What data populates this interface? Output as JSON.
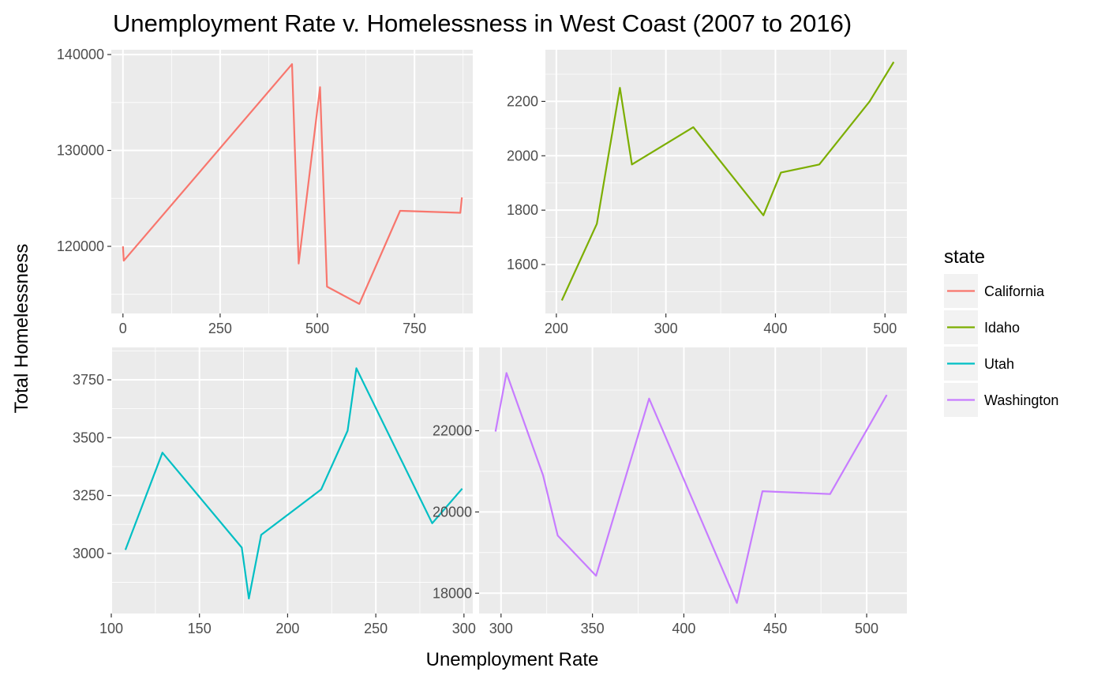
{
  "chart_data": {
    "type": "line",
    "title": "Unemployment Rate v. Homelessness in West Coast (2007 to 2016)",
    "xlabel": "Unemployment Rate",
    "ylabel": "Total Homelessness",
    "grid": true,
    "legend": {
      "title": "state",
      "placement": "right",
      "entries": [
        "California",
        "Idaho",
        "Utah",
        "Washington"
      ]
    },
    "panels": [
      {
        "name": "California",
        "color": "#F8766D",
        "xlim": [
          -30,
          900
        ],
        "ylim": [
          113000,
          140500
        ],
        "xticks": [
          0,
          250,
          500,
          750
        ],
        "xtick_labels": [
          "0",
          "250",
          "500",
          "750"
        ],
        "yticks": [
          120000,
          130000,
          140000
        ],
        "ytick_labels": [
          "120000",
          "130000",
          "140000"
        ],
        "x": [
          0,
          2,
          435,
          452,
          507,
          525,
          608,
          713,
          868,
          872
        ],
        "y": [
          120000,
          118500,
          139000,
          118200,
          136600,
          115800,
          114000,
          123700,
          123500,
          125100
        ]
      },
      {
        "name": "Idaho",
        "color": "#7CAE00",
        "xlim": [
          190,
          520
        ],
        "ylim": [
          1420,
          2390
        ],
        "xticks": [
          200,
          300,
          400,
          500
        ],
        "xtick_labels": [
          "200",
          "300",
          "400",
          "500"
        ],
        "yticks": [
          1600,
          1800,
          2000,
          2200
        ],
        "ytick_labels": [
          "1600",
          "1800",
          "2000",
          "2200"
        ],
        "x": [
          205,
          237,
          258,
          269,
          325,
          389,
          405,
          440,
          486,
          508
        ],
        "y": [
          1468,
          1750,
          2250,
          1968,
          2105,
          1781,
          1938,
          1968,
          2200,
          2345
        ]
      },
      {
        "name": "Utah",
        "color": "#00BFC4",
        "xlim": [
          100,
          305
        ],
        "ylim": [
          2740,
          3890
        ],
        "xticks": [
          100,
          150,
          200,
          250,
          300
        ],
        "xtick_labels": [
          "100",
          "150",
          "200",
          "250",
          "300"
        ],
        "yticks": [
          3000,
          3250,
          3500,
          3750
        ],
        "ytick_labels": [
          "3000",
          "3250",
          "3500",
          "3750"
        ],
        "x": [
          108,
          129,
          174,
          178,
          185,
          219,
          234,
          239,
          282,
          299
        ],
        "y": [
          3015,
          3435,
          3025,
          2805,
          3080,
          3276,
          3530,
          3800,
          3130,
          3280
        ]
      },
      {
        "name": "Washington",
        "color": "#C77CFF",
        "xlim": [
          288,
          522
        ],
        "ylim": [
          17500,
          24050
        ],
        "xticks": [
          300,
          350,
          400,
          450,
          500
        ],
        "xtick_labels": [
          "300",
          "350",
          "400",
          "450",
          "500"
        ],
        "yticks": [
          18000,
          20000,
          22000
        ],
        "ytick_labels": [
          "18000",
          "20000",
          "22000"
        ],
        "x": [
          297,
          303,
          323,
          331,
          352,
          381,
          429,
          443,
          480,
          511
        ],
        "y": [
          21980,
          23420,
          20900,
          19420,
          18430,
          22790,
          17760,
          20510,
          20440,
          22880
        ]
      }
    ]
  }
}
